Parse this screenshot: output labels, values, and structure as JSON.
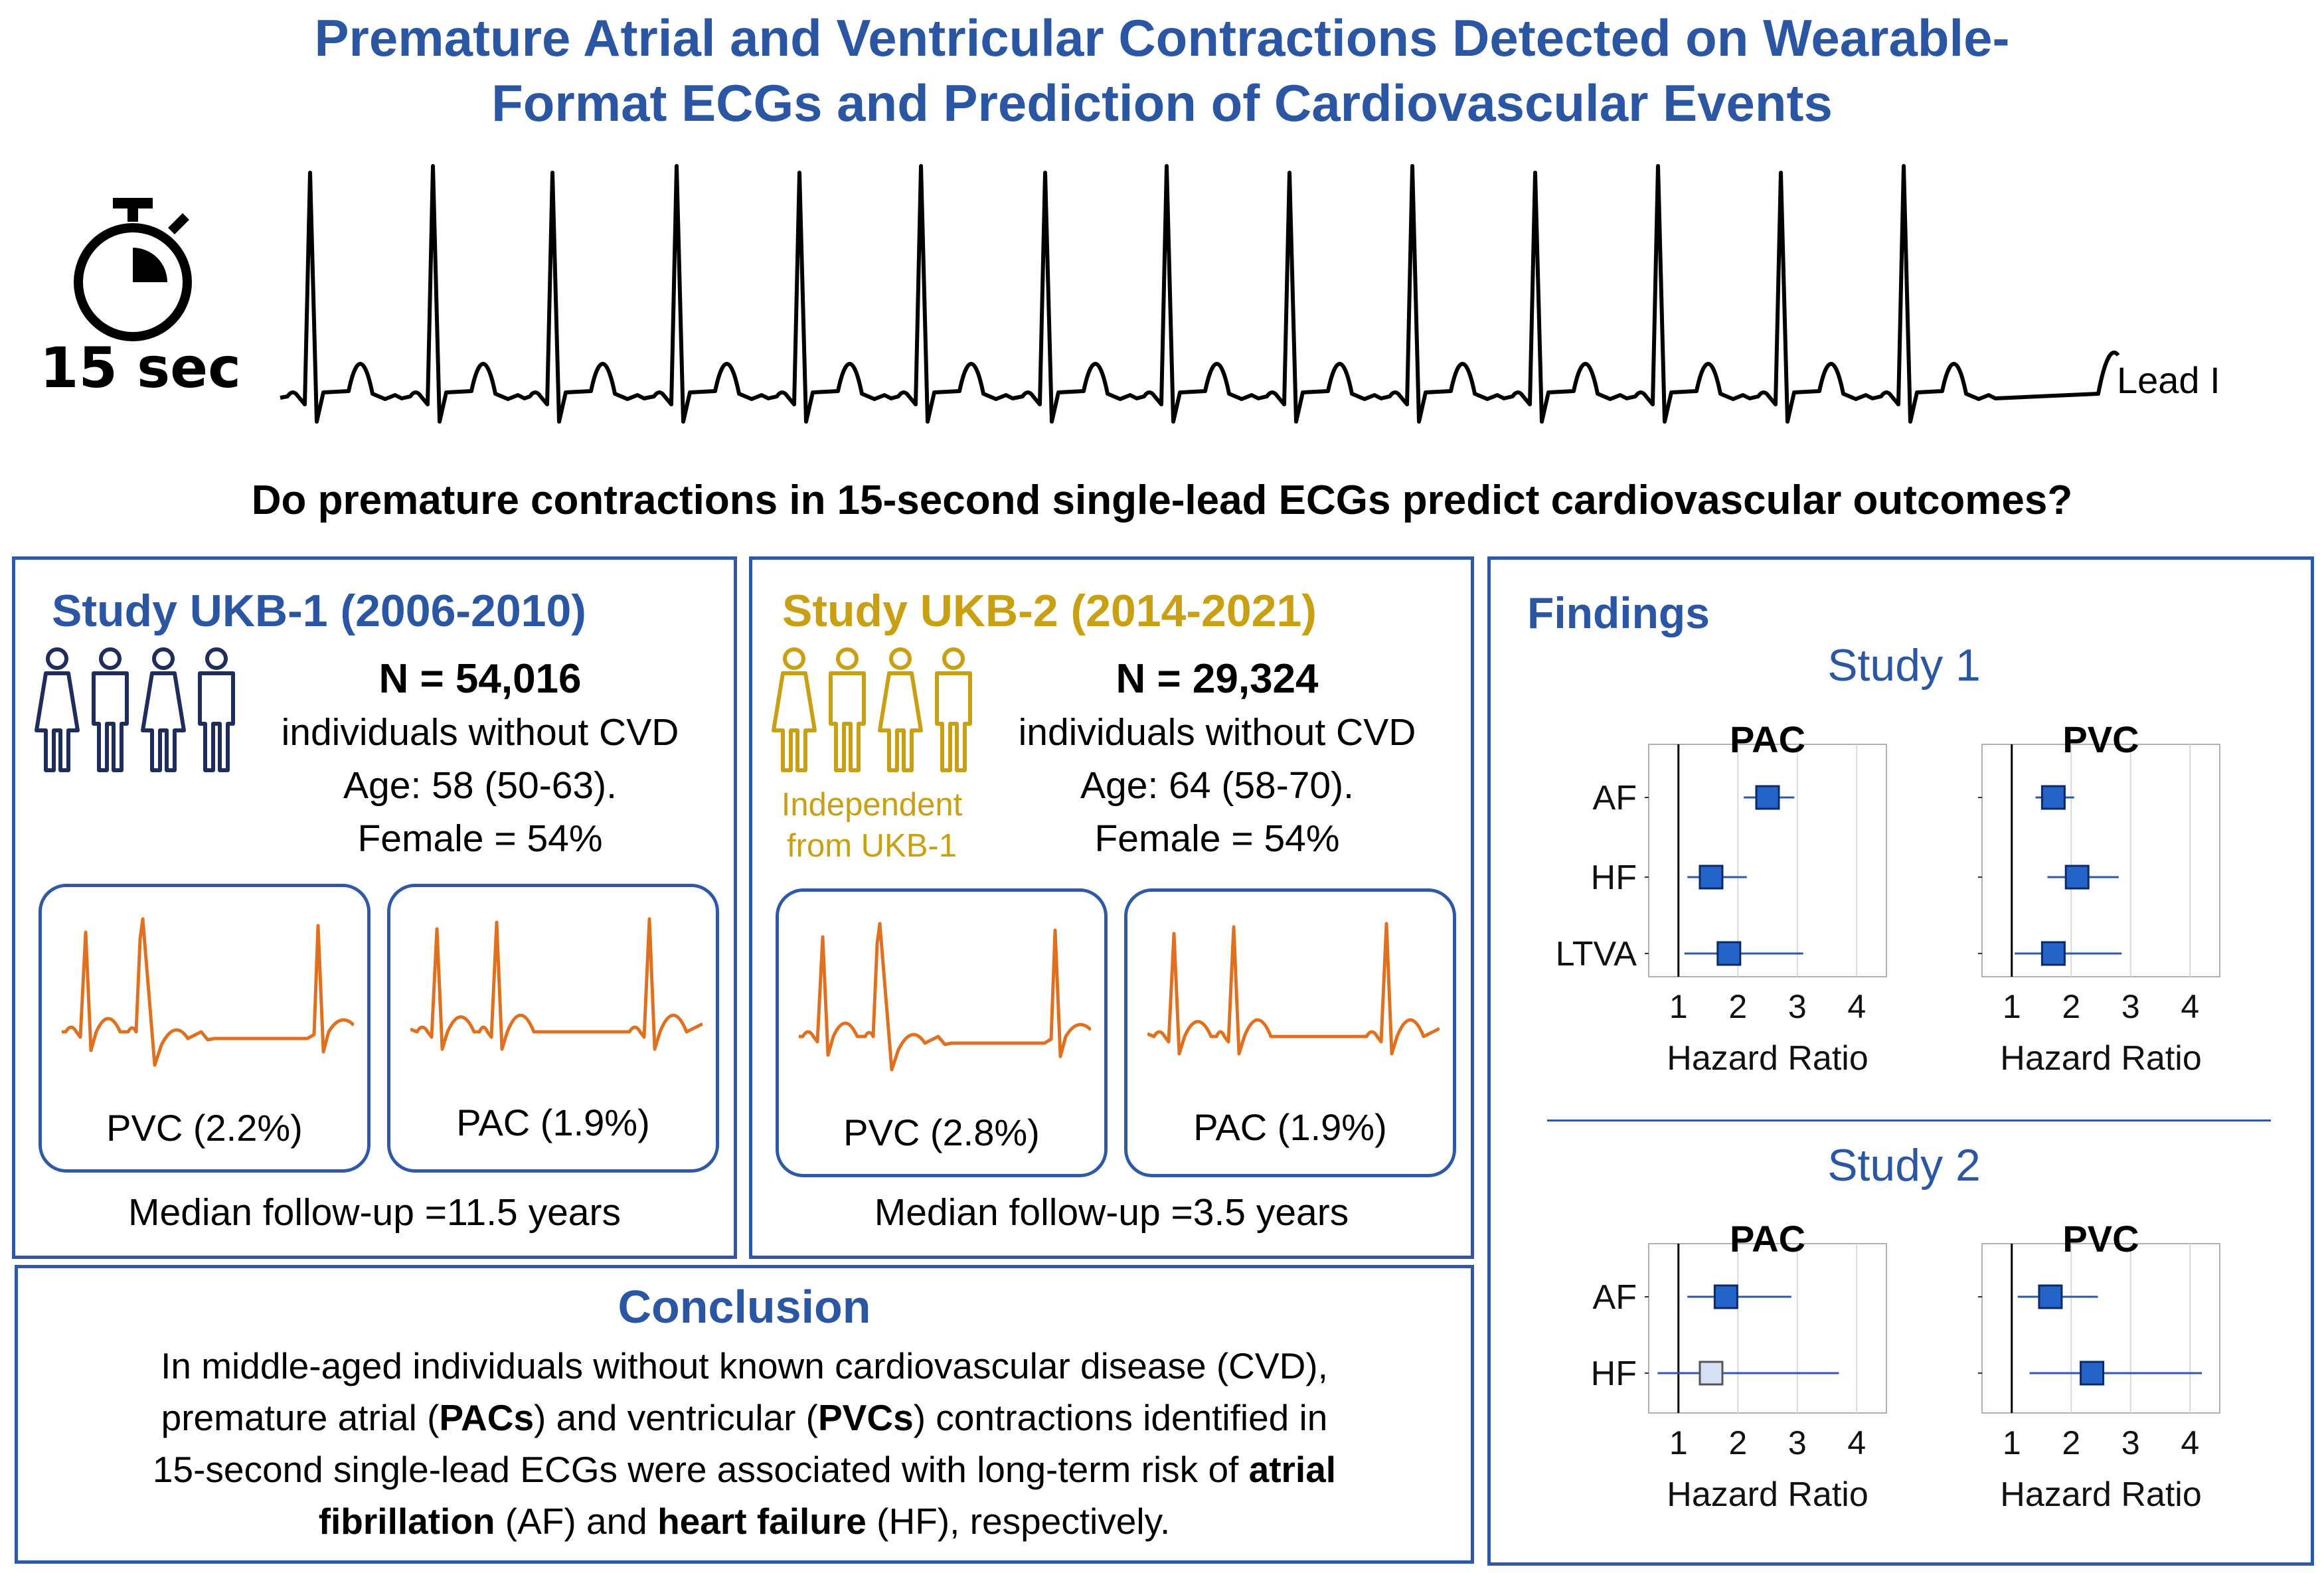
{
  "title_line1": "Premature Atrial and Ventricular Contractions Detected on Wearable-",
  "title_line2": "Format ECGs and Prediction of Cardiovascular Events",
  "timer_label": "15 sec",
  "ecg_lead_label": "Lead I",
  "question": "Do premature contractions in 15-second single-lead ECGs predict cardiovascular outcomes?",
  "colors": {
    "blue": "#2a56a4",
    "gold": "#c9a012",
    "orange": "#e0701e",
    "marker": "#2463c7",
    "marker_light": "#d6e0f5"
  },
  "study1": {
    "title": "Study UKB-1 (2006-2010)",
    "n": "N = 54,016",
    "desc": "individuals without CVD",
    "age": "Age: 58 (50-63).",
    "female": "Female = 54%",
    "pvc": "PVC (2.2%)",
    "pac": "PAC (1.9%)",
    "followup": "Median follow-up =11.5 years"
  },
  "study2": {
    "title": "Study UKB-2 (2014-2021)",
    "n": "N = 29,324",
    "desc": "individuals without CVD",
    "age": "Age: 64 (58-70).",
    "female": "Female = 54%",
    "independent_line1": "Independent",
    "independent_line2": "from UKB-1",
    "pvc": "PVC (2.8%)",
    "pac": "PAC (1.9%)",
    "followup": "Median follow-up =3.5 years"
  },
  "conclusion": {
    "title": "Conclusion",
    "t1": "In middle-aged individuals without known cardiovascular disease (CVD),",
    "t2a": "premature atrial (",
    "t2b": "PACs",
    "t2c": ") and ventricular (",
    "t2d": "PVCs",
    "t2e": ") contractions identified in",
    "t3a": "15-second single-lead ECGs were associated with long-term risk of ",
    "t3b": "atrial",
    "t4a": "fibrillation",
    "t4b": " (AF) and ",
    "t4c": "heart failure",
    "t4d": " (HF), respectively."
  },
  "findings": {
    "title": "Findings",
    "study1_label": "Study 1",
    "study2_label": "Study 2"
  },
  "chart_data": [
    {
      "type": "scatter",
      "study": "Study 1",
      "title": "PAC",
      "xlabel": "Hazard Ratio",
      "xlim": [
        0.5,
        4.5
      ],
      "xticks": [
        1,
        2,
        3,
        4
      ],
      "categories": [
        "AF",
        "HF",
        "LTVA"
      ],
      "hr": [
        2.5,
        1.55,
        1.85
      ],
      "ci_low": [
        2.1,
        1.15,
        1.1
      ],
      "ci_high": [
        2.95,
        2.15,
        3.1
      ],
      "significant": [
        true,
        true,
        true
      ]
    },
    {
      "type": "scatter",
      "study": "Study 1",
      "title": "PVC",
      "xlabel": "Hazard Ratio",
      "xlim": [
        0.5,
        4.5
      ],
      "xticks": [
        1,
        2,
        3,
        4
      ],
      "categories": [
        "AF",
        "HF",
        "LTVA"
      ],
      "hr": [
        1.7,
        2.1,
        1.7
      ],
      "ci_low": [
        1.4,
        1.6,
        1.05
      ],
      "ci_high": [
        2.05,
        2.8,
        2.85
      ],
      "significant": [
        true,
        true,
        true
      ]
    },
    {
      "type": "scatter",
      "study": "Study 2",
      "title": "PAC",
      "xlabel": "Hazard Ratio",
      "xlim": [
        0.5,
        4.5
      ],
      "xticks": [
        1,
        2,
        3,
        4
      ],
      "categories": [
        "AF",
        "HF"
      ],
      "hr": [
        1.8,
        1.55
      ],
      "ci_low": [
        1.15,
        0.65
      ],
      "ci_high": [
        2.9,
        3.7
      ],
      "significant": [
        true,
        false
      ]
    },
    {
      "type": "scatter",
      "study": "Study 2",
      "title": "PVC",
      "xlabel": "Hazard Ratio",
      "xlim": [
        0.5,
        4.5
      ],
      "xticks": [
        1,
        2,
        3,
        4
      ],
      "categories": [
        "AF",
        "HF"
      ],
      "hr": [
        1.65,
        2.35
      ],
      "ci_low": [
        1.1,
        1.3
      ],
      "ci_high": [
        2.45,
        4.2
      ],
      "significant": [
        true,
        true
      ]
    }
  ]
}
